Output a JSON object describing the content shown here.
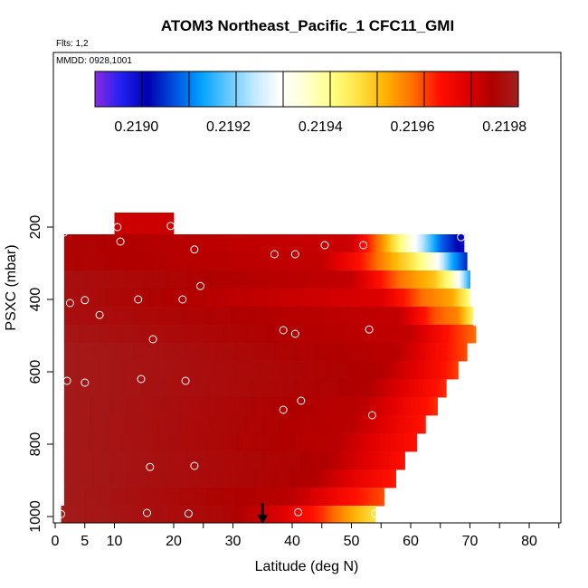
{
  "chart_data": {
    "type": "heatmap",
    "title": "ATOM3 Northeast_Pacific_1 CFC11_GMI",
    "flights_label": "Flts: 1,2",
    "mmdd_label": "MMDD: 0928,1001",
    "xlabel": "Latitude (deg N)",
    "ylabel": "PSXC (mbar)",
    "xlim": [
      0,
      85
    ],
    "ylim": [
      1000,
      0
    ],
    "x_ticks": [
      0,
      5,
      10,
      20,
      30,
      40,
      50,
      60,
      70,
      80
    ],
    "x_tick_labels": [
      "0",
      "5",
      "10",
      "20",
      "30",
      "40",
      "50",
      "60",
      "70",
      "80"
    ],
    "y_ticks": [
      200,
      400,
      600,
      800,
      1000
    ],
    "y_tick_labels": [
      "200",
      "400",
      "600",
      "800",
      "1000"
    ],
    "colorbar": {
      "min": 0.21891,
      "max": 0.21983,
      "ticks": [
        0.219,
        0.2192,
        0.2194,
        0.2196,
        0.2198
      ],
      "tick_labels": [
        "0.2190",
        "0.2192",
        "0.2194",
        "0.2196",
        "0.2198"
      ],
      "colors": [
        "#8a2be2",
        "#2020f0",
        "#0000b0",
        "#0050e0",
        "#00a0ff",
        "#60c8ff",
        "#c0e8ff",
        "#ffffff",
        "#ffffd0",
        "#ffff80",
        "#ffe040",
        "#ffb000",
        "#ff7000",
        "#ff1000",
        "#e00000",
        "#b00000",
        "#a02020"
      ]
    },
    "levels": [
      {
        "p_top": 160,
        "p_bot": 220,
        "lat_min": 10,
        "lat_max": 20,
        "values": [
          [
            10,
            0.21974
          ],
          [
            20,
            0.21974
          ]
        ]
      },
      {
        "p_top": 220,
        "p_bot": 270,
        "lat_min": 1.5,
        "lat_max": 69,
        "values": [
          [
            1.5,
            0.21978
          ],
          [
            50,
            0.21974
          ],
          [
            55,
            0.21958
          ],
          [
            59,
            0.2194
          ],
          [
            62,
            0.21925
          ],
          [
            65,
            0.2191
          ],
          [
            69,
            0.219
          ]
        ]
      },
      {
        "p_top": 270,
        "p_bot": 320,
        "lat_min": 1.5,
        "lat_max": 69.5,
        "values": [
          [
            1.5,
            0.21978
          ],
          [
            45,
            0.21975
          ],
          [
            52,
            0.21965
          ],
          [
            60,
            0.21948
          ],
          [
            64,
            0.21935
          ],
          [
            67,
            0.21915
          ],
          [
            69.5,
            0.21905
          ]
        ]
      },
      {
        "p_top": 320,
        "p_bot": 370,
        "lat_min": 1.5,
        "lat_max": 70,
        "values": [
          [
            1.5,
            0.2198
          ],
          [
            50,
            0.21975
          ],
          [
            58,
            0.2196
          ],
          [
            64,
            0.21952
          ],
          [
            67,
            0.2194
          ],
          [
            70,
            0.21915
          ]
        ]
      },
      {
        "p_top": 370,
        "p_bot": 420,
        "lat_min": 1.5,
        "lat_max": 70,
        "values": [
          [
            1.5,
            0.2198
          ],
          [
            55,
            0.21972
          ],
          [
            62,
            0.2196
          ],
          [
            67,
            0.21955
          ],
          [
            70,
            0.21942
          ]
        ]
      },
      {
        "p_top": 420,
        "p_bot": 470,
        "lat_min": 1.5,
        "lat_max": 70.5,
        "values": [
          [
            1.5,
            0.2198
          ],
          [
            58,
            0.21975
          ],
          [
            64,
            0.21962
          ],
          [
            68,
            0.21958
          ],
          [
            70.5,
            0.21945
          ]
        ]
      },
      {
        "p_top": 470,
        "p_bot": 520,
        "lat_min": 1.5,
        "lat_max": 71,
        "values": [
          [
            1.5,
            0.21981
          ],
          [
            60,
            0.21975
          ],
          [
            66,
            0.21966
          ],
          [
            71,
            0.2196
          ]
        ]
      },
      {
        "p_top": 520,
        "p_bot": 570,
        "lat_min": 1.5,
        "lat_max": 69.5,
        "values": [
          [
            1.5,
            0.21982
          ],
          [
            58,
            0.21976
          ],
          [
            64,
            0.21968
          ],
          [
            69.5,
            0.21962
          ]
        ]
      },
      {
        "p_top": 570,
        "p_bot": 620,
        "lat_min": 1.5,
        "lat_max": 68,
        "values": [
          [
            1.5,
            0.21982
          ],
          [
            55,
            0.21977
          ],
          [
            62,
            0.2197
          ],
          [
            68,
            0.21963
          ]
        ]
      },
      {
        "p_top": 620,
        "p_bot": 670,
        "lat_min": 1.5,
        "lat_max": 66,
        "values": [
          [
            1.5,
            0.21982
          ],
          [
            53,
            0.21977
          ],
          [
            60,
            0.2197
          ],
          [
            66,
            0.21964
          ]
        ]
      },
      {
        "p_top": 670,
        "p_bot": 720,
        "lat_min": 1.5,
        "lat_max": 64.5,
        "values": [
          [
            1.5,
            0.21982
          ],
          [
            52,
            0.21976
          ],
          [
            58,
            0.2197
          ],
          [
            64.5,
            0.21964
          ]
        ]
      },
      {
        "p_top": 720,
        "p_bot": 770,
        "lat_min": 1.5,
        "lat_max": 62.5,
        "values": [
          [
            1.5,
            0.21982
          ],
          [
            50,
            0.21976
          ],
          [
            57,
            0.2197
          ],
          [
            62.5,
            0.21965
          ]
        ]
      },
      {
        "p_top": 770,
        "p_bot": 820,
        "lat_min": 1.5,
        "lat_max": 61,
        "values": [
          [
            1.5,
            0.21982
          ],
          [
            48,
            0.21976
          ],
          [
            55,
            0.2197
          ],
          [
            61,
            0.21966
          ]
        ]
      },
      {
        "p_top": 820,
        "p_bot": 870,
        "lat_min": 1.5,
        "lat_max": 59,
        "values": [
          [
            1.5,
            0.21982
          ],
          [
            46,
            0.21977
          ],
          [
            53,
            0.21971
          ],
          [
            59,
            0.21966
          ]
        ]
      },
      {
        "p_top": 870,
        "p_bot": 920,
        "lat_min": 1.5,
        "lat_max": 57.5,
        "values": [
          [
            1.5,
            0.21982
          ],
          [
            44,
            0.21977
          ],
          [
            51,
            0.2197
          ],
          [
            57.5,
            0.21965
          ]
        ]
      },
      {
        "p_top": 920,
        "p_bot": 970,
        "lat_min": 1.5,
        "lat_max": 55.5,
        "values": [
          [
            1.5,
            0.21982
          ],
          [
            40,
            0.21976
          ],
          [
            48,
            0.21968
          ],
          [
            55.5,
            0.21962
          ]
        ]
      },
      {
        "p_top": 970,
        "p_bot": 1020,
        "lat_min": 1,
        "lat_max": 54,
        "values": [
          [
            1,
            0.21982
          ],
          [
            30,
            0.21978
          ],
          [
            38,
            0.21972
          ],
          [
            45,
            0.21964
          ],
          [
            50,
            0.21955
          ],
          [
            54,
            0.21948
          ]
        ]
      }
    ],
    "points": [
      [
        1.5,
        215
      ],
      [
        10.5,
        200
      ],
      [
        11,
        240
      ],
      [
        19.5,
        197
      ],
      [
        68.5,
        228
      ],
      [
        23.5,
        262
      ],
      [
        37,
        275
      ],
      [
        40.5,
        275
      ],
      [
        45.5,
        250
      ],
      [
        52,
        250
      ],
      [
        24.5,
        363
      ],
      [
        2.5,
        410
      ],
      [
        5,
        402
      ],
      [
        14,
        400
      ],
      [
        21.5,
        400
      ],
      [
        7.5,
        443
      ],
      [
        71,
        463
      ],
      [
        38.5,
        485
      ],
      [
        40.5,
        495
      ],
      [
        53,
        483
      ],
      [
        16.5,
        510
      ],
      [
        2,
        625
      ],
      [
        5,
        630
      ],
      [
        14.5,
        620
      ],
      [
        22,
        625
      ],
      [
        41.5,
        680
      ],
      [
        38.5,
        705
      ],
      [
        53.5,
        720
      ],
      [
        16,
        863
      ],
      [
        23.5,
        860
      ],
      [
        1,
        993
      ],
      [
        15.5,
        990
      ],
      [
        22.5,
        992
      ],
      [
        41,
        988
      ],
      [
        54,
        992
      ],
      [
        -0.5,
        1000
      ]
    ],
    "marker": {
      "lat": 35,
      "pressure": 1000
    }
  }
}
